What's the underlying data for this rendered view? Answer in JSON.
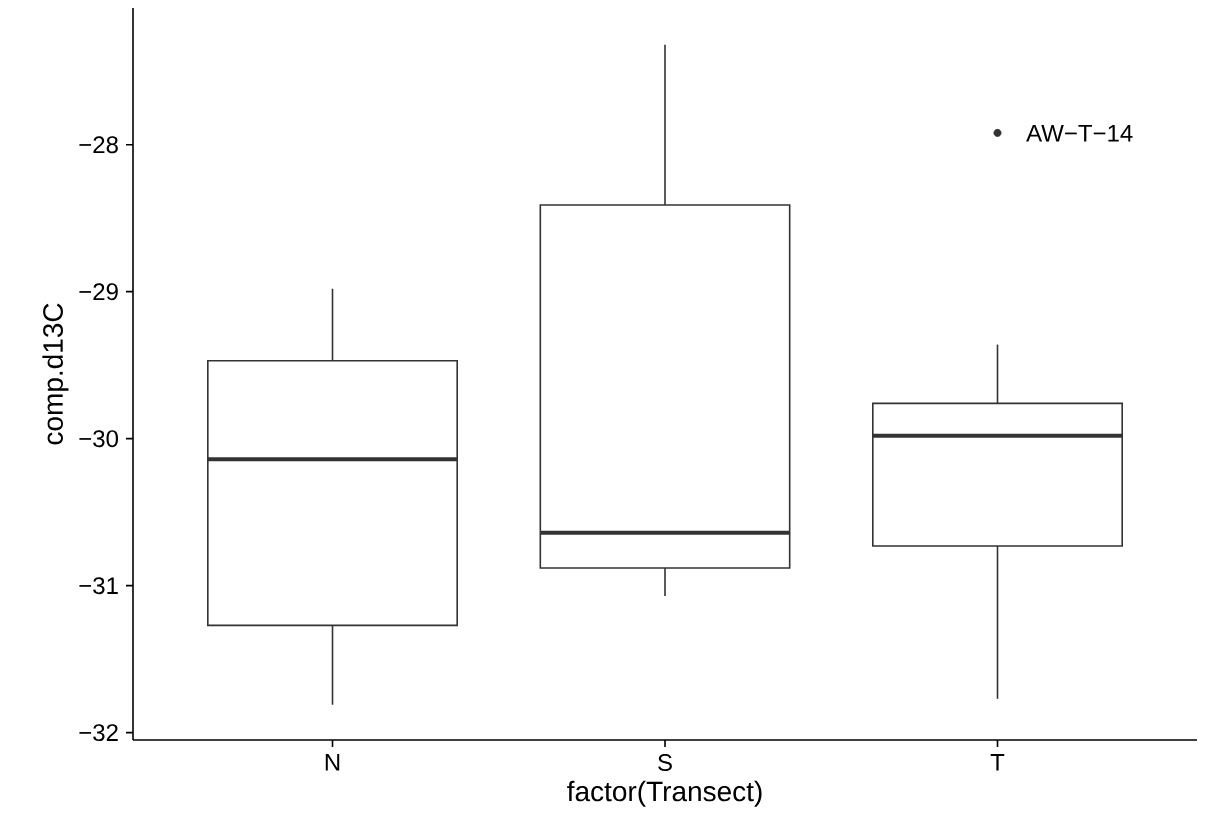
{
  "chart_data": {
    "type": "box",
    "categories": [
      "N",
      "S",
      "T"
    ],
    "boxes": [
      {
        "low": -31.81,
        "q1": -31.27,
        "median": -30.14,
        "q3": -29.47,
        "high": -28.98
      },
      {
        "low": -31.07,
        "q1": -30.88,
        "median": -30.64,
        "q3": -28.41,
        "high": -27.32
      },
      {
        "low": -31.77,
        "q1": -30.73,
        "median": -29.98,
        "q3": -29.76,
        "high": -29.36,
        "outliers": [
          -27.92
        ]
      }
    ],
    "color": "#333333",
    "xlabel": "factor(Transect)",
    "ylabel": "comp.d13C",
    "ylim": [
      -32.05,
      -27.07
    ],
    "yticks": [
      {
        "value": -32,
        "label": "−32"
      },
      {
        "value": -31,
        "label": "−31"
      },
      {
        "value": -30,
        "label": "−30"
      },
      {
        "value": -29,
        "label": "−29"
      },
      {
        "value": -28,
        "label": "−28"
      }
    ],
    "annotations": [
      "AW−T−14"
    ]
  }
}
